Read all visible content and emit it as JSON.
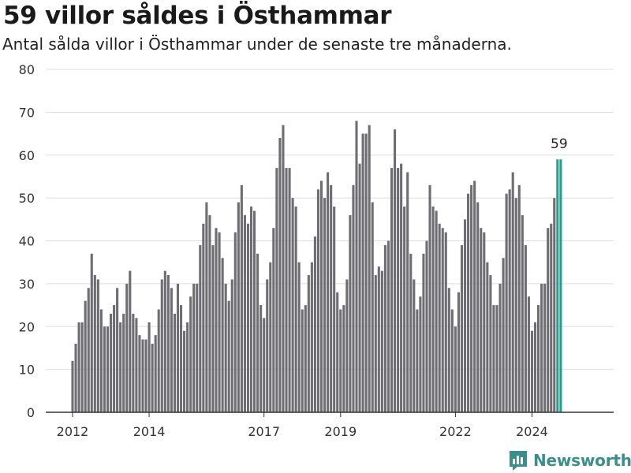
{
  "header": {
    "title": "59 villor såldes i Östhammar",
    "subtitle": "Antal sålda villor i Östhammar under de senaste tre månaderna."
  },
  "brand": {
    "name": "Newsworthy",
    "icon": "bar-chart-speech-icon",
    "color": "#3a8f8c"
  },
  "colors": {
    "bar": "#6e6d72",
    "highlight": "#2a9d8f",
    "grid": "#dddddd",
    "axis": "#333333"
  },
  "chart_data": {
    "type": "bar",
    "title": "59 villor såldes i Östhammar",
    "subtitle": "Antal sålda villor i Östhammar under de senaste tre månaderna.",
    "ylim": [
      0,
      80
    ],
    "yticks": [
      0,
      10,
      20,
      30,
      40,
      50,
      60,
      70,
      80
    ],
    "grid": true,
    "xticks": [
      "2012",
      "2014",
      "2017",
      "2019",
      "2022",
      "2024"
    ],
    "xtick_positions": [
      0,
      24,
      60,
      84,
      120,
      144
    ],
    "highlight_label": "59",
    "values": [
      12,
      16,
      21,
      21,
      26,
      29,
      37,
      32,
      31,
      24,
      20,
      20,
      23,
      25,
      29,
      21,
      23,
      30,
      33,
      23,
      22,
      18,
      17,
      17,
      21,
      16,
      18,
      24,
      31,
      33,
      32,
      29,
      23,
      30,
      25,
      19,
      21,
      27,
      30,
      30,
      39,
      44,
      49,
      46,
      39,
      43,
      42,
      36,
      30,
      26,
      31,
      42,
      49,
      53,
      46,
      44,
      48,
      47,
      37,
      25,
      22,
      31,
      35,
      43,
      57,
      64,
      67,
      57,
      57,
      50,
      48,
      35,
      24,
      25,
      32,
      35,
      41,
      52,
      54,
      50,
      56,
      53,
      48,
      28,
      24,
      25,
      31,
      46,
      53,
      68,
      58,
      65,
      65,
      67,
      49,
      32,
      34,
      33,
      39,
      40,
      57,
      66,
      57,
      58,
      48,
      56,
      37,
      31,
      24,
      27,
      37,
      40,
      53,
      48,
      47,
      44,
      43,
      42,
      29,
      24,
      20,
      28,
      39,
      45,
      51,
      53,
      54,
      49,
      43,
      42,
      35,
      32,
      25,
      25,
      30,
      36,
      51,
      52,
      56,
      50,
      53,
      46,
      39,
      27,
      19,
      21,
      25,
      30,
      30,
      43,
      44,
      50,
      59,
      59
    ],
    "highlight_from": 152
  }
}
